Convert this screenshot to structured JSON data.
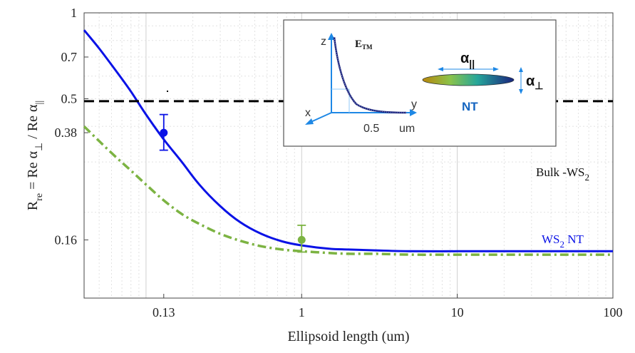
{
  "chart_data": {
    "type": "line",
    "x_scale": "log",
    "y_scale": "log",
    "xlim": [
      0.04,
      100
    ],
    "ylim": [
      0.1,
      1
    ],
    "grid": true,
    "xlabel": "Ellipsoid length (um)",
    "ylabel": {
      "main": "R",
      "sub": "re",
      "rest": " = Re α",
      "sub2": "⊥",
      "mid": " / Re α",
      "sub3": "||"
    },
    "x_ticks": [
      {
        "value": 0.13,
        "label": "0.13"
      },
      {
        "value": 1,
        "label": "1"
      },
      {
        "value": 10,
        "label": "10"
      },
      {
        "value": 100,
        "label": "100"
      }
    ],
    "y_ticks": [
      {
        "value": 0.16,
        "label": "0.16"
      },
      {
        "value": 0.38,
        "label": "0.38"
      },
      {
        "value": 0.5,
        "label": "0.5"
      },
      {
        "value": 0.7,
        "label": "0.7"
      },
      {
        "value": 1,
        "label": "1"
      }
    ],
    "series": [
      {
        "name": "WS₂ NT",
        "style": "solid",
        "color": "#0a12e6",
        "x": [
          0.04,
          0.05,
          0.065,
          0.08,
          0.1,
          0.13,
          0.17,
          0.22,
          0.3,
          0.4,
          0.55,
          0.75,
          1,
          1.5,
          2,
          3,
          5,
          10,
          20,
          50,
          100
        ],
        "y": [
          0.87,
          0.75,
          0.62,
          0.53,
          0.44,
          0.36,
          0.3,
          0.25,
          0.21,
          0.185,
          0.168,
          0.158,
          0.153,
          0.149,
          0.148,
          0.147,
          0.146,
          0.146,
          0.146,
          0.146,
          0.146
        ]
      },
      {
        "name": "",
        "style": "dashdot",
        "color": "#7cb342",
        "x": [
          0.04,
          0.05,
          0.065,
          0.08,
          0.1,
          0.13,
          0.17,
          0.22,
          0.3,
          0.4,
          0.55,
          0.75,
          1,
          1.5,
          2,
          3,
          5,
          10,
          20,
          50,
          100
        ],
        "y": [
          0.4,
          0.355,
          0.31,
          0.28,
          0.25,
          0.22,
          0.197,
          0.182,
          0.168,
          0.159,
          0.152,
          0.148,
          0.146,
          0.144,
          0.143,
          0.143,
          0.142,
          0.142,
          0.142,
          0.142,
          0.142
        ]
      },
      {
        "name": "Bulk -WS₂",
        "style": "dashed",
        "color": "#000000",
        "x": [
          0.04,
          100
        ],
        "y": [
          0.49,
          0.49
        ]
      }
    ],
    "points": [
      {
        "x": 0.13,
        "y": 0.38,
        "err_low": 0.33,
        "err_high": 0.44,
        "color": "#0a12e6"
      },
      {
        "x": 1,
        "y": 0.16,
        "err_low": 0.145,
        "err_high": 0.18,
        "color": "#7cb342"
      }
    ],
    "annotations": {
      "bulk": {
        "main": "Bulk -WS",
        "sub": "2"
      },
      "nt": {
        "main": "WS",
        "sub": "2",
        "rest": " NT"
      }
    }
  },
  "inset": {
    "e_label": "E",
    "e_sub": "TM",
    "axis_z": "z",
    "axis_y": "y",
    "axis_x": "x",
    "tick_label": "0.5",
    "unit_label": "um",
    "alpha_par": "α",
    "alpha_par_sub": "||",
    "alpha_perp": "α",
    "alpha_perp_sub": "⊥",
    "nt_label": "NT",
    "nt_color": "#1565c0"
  }
}
